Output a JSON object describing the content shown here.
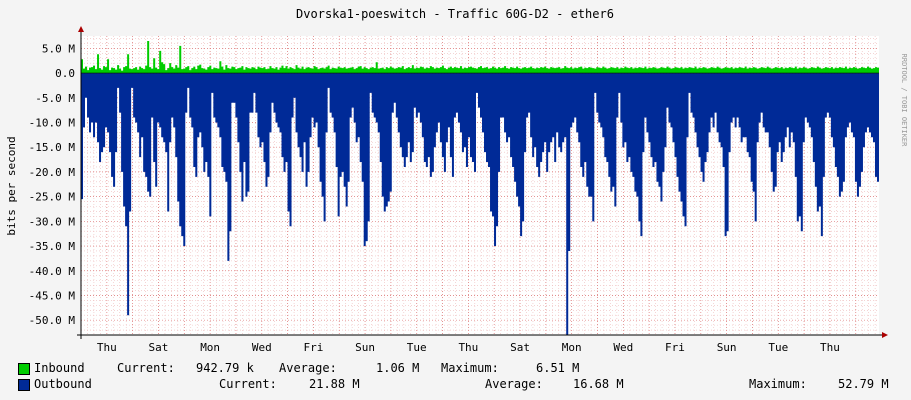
{
  "chart_data": {
    "type": "area",
    "title": "Dvorska1-poeswitch - Traffic 60G-D2 - ether6",
    "ylabel": "bits per second",
    "side_label": "RRDTOOL / TOBI OETIKER",
    "ylim": [
      -53000000,
      7500000
    ],
    "y_ticks": [
      {
        "value": 5000000,
        "label": "5.0 M"
      },
      {
        "value": 0,
        "label": "0.0"
      },
      {
        "value": -5000000,
        "label": "-5.0 M"
      },
      {
        "value": -10000000,
        "label": "-10.0 M"
      },
      {
        "value": -15000000,
        "label": "-15.0 M"
      },
      {
        "value": -20000000,
        "label": "-20.0 M"
      },
      {
        "value": -25000000,
        "label": "-25.0 M"
      },
      {
        "value": -30000000,
        "label": "-30.0 M"
      },
      {
        "value": -35000000,
        "label": "-35.0 M"
      },
      {
        "value": -40000000,
        "label": "-40.0 M"
      },
      {
        "value": -45000000,
        "label": "-45.0 M"
      },
      {
        "value": -50000000,
        "label": "-50.0 M"
      }
    ],
    "x_ticks": [
      "Thu",
      "Sat",
      "Mon",
      "Wed",
      "Fri",
      "Sun",
      "Tue",
      "Thu",
      "Sat",
      "Mon",
      "Wed",
      "Fri",
      "Sun",
      "Tue",
      "Thu"
    ],
    "x_tick_days": [
      1,
      3,
      5,
      7,
      9,
      11,
      13,
      15,
      17,
      19,
      21,
      23,
      25,
      27,
      29
    ],
    "x_range_days": [
      0,
      30.9
    ],
    "grid": true,
    "legend": "bottom",
    "series": [
      {
        "name": "Inbound",
        "color": "#00cc00",
        "direction": "up",
        "values": [
          2.8,
          0.9,
          1.3,
          0.6,
          1.1,
          1.2,
          1.5,
          0.8,
          3.8,
          1.0,
          0.7,
          1.4,
          1.2,
          2.8,
          0.6,
          1.1,
          1.0,
          0.7,
          1.6,
          0.9,
          0.5,
          1.2,
          1.4,
          3.8,
          0.9,
          0.8,
          1.0,
          1.2,
          0.7,
          1.3,
          1.0,
          0.8,
          1.5,
          6.5,
          1.2,
          0.9,
          3.0,
          1.1,
          0.8,
          4.5,
          2.2,
          1.8,
          0.6,
          1.0,
          2.0,
          1.2,
          0.9,
          1.6,
          1.1,
          5.5,
          0.8,
          0.9,
          1.2,
          1.4,
          0.6,
          1.0,
          1.3,
          0.8,
          1.5,
          1.7,
          1.0,
          0.9,
          0.7,
          1.2,
          1.5,
          0.8,
          1.1,
          1.0,
          0.9,
          2.4,
          1.3,
          0.7,
          1.6,
          1.0,
          0.9,
          1.3,
          1.2,
          0.8,
          1.0,
          1.1,
          1.4,
          0.7,
          1.2,
          1.0,
          0.9,
          1.2,
          1.1,
          0.8,
          1.3,
          1.1,
          1.0,
          1.2,
          0.8,
          0.9,
          1.4,
          1.0,
          0.9,
          1.2,
          0.7,
          1.1,
          1.5,
          1.0,
          1.4,
          0.9,
          1.2,
          1.0,
          0.8,
          1.6,
          1.1,
          0.9,
          1.3,
          0.8,
          1.1,
          1.2,
          1.0,
          0.9,
          1.4,
          1.2,
          0.8,
          1.0,
          1.1,
          0.9,
          1.2,
          1.5,
          0.8,
          1.1,
          1.0,
          0.9,
          1.3,
          1.1,
          1.0,
          1.2,
          0.9,
          1.0,
          1.1,
          1.2,
          0.8,
          1.0,
          1.3,
          1.4,
          0.9,
          1.2,
          1.0,
          0.8,
          1.1,
          1.2,
          1.0,
          2.2,
          0.9,
          1.0,
          1.1,
          0.8,
          1.2,
          1.0,
          1.3,
          1.1,
          0.9,
          1.0,
          1.2,
          1.1,
          1.4,
          0.8,
          1.0,
          1.2,
          1.0,
          1.6,
          0.9,
          1.1,
          1.0,
          1.3,
          1.2,
          0.9,
          1.1,
          1.0,
          1.4,
          1.2,
          0.9,
          1.1,
          1.0,
          1.2,
          1.5,
          1.0,
          0.8,
          1.1,
          1.3,
          1.0,
          1.2,
          1.1,
          1.0,
          1.4,
          0.9,
          1.1,
          1.0,
          1.2,
          1.3,
          1.1,
          1.0,
          0.9,
          1.2,
          1.4,
          1.0,
          1.1,
          1.2,
          0.9,
          1.0,
          1.3,
          1.1,
          0.9,
          1.2,
          1.0,
          1.1,
          1.4,
          1.0,
          0.9,
          1.2,
          1.1,
          1.0,
          1.3,
          1.0,
          0.9,
          1.1,
          1.2,
          1.0,
          1.1,
          1.3,
          1.0,
          0.9,
          1.1,
          1.0,
          1.2,
          1.1,
          1.3,
          1.0,
          0.9,
          1.2,
          1.1,
          1.0,
          1.1,
          1.2,
          0.9,
          1.0,
          1.4,
          1.1,
          1.0,
          1.2,
          0.9,
          1.1,
          1.0,
          1.2,
          1.3,
          0.9,
          1.1,
          1.0,
          1.2,
          1.1,
          1.0,
          0.9,
          1.2,
          1.1,
          1.0,
          1.3,
          1.1,
          0.9,
          1.0,
          1.2,
          1.1,
          1.0,
          1.2,
          0.9,
          1.1,
          1.0,
          1.3,
          1.1,
          1.0,
          1.2,
          0.9,
          1.1,
          1.0,
          1.2,
          1.1,
          1.0,
          1.3,
          0.9,
          1.1,
          1.0,
          1.2,
          1.1,
          0.9,
          1.0,
          1.2,
          1.1,
          1.0,
          1.3,
          1.1,
          0.9,
          1.0,
          1.2,
          1.1,
          1.0,
          1.2,
          0.9,
          1.1,
          1.0,
          1.2,
          1.1,
          1.0,
          1.3,
          0.9,
          1.1,
          1.0,
          1.2,
          1.1,
          0.9,
          1.0,
          1.2,
          1.1,
          1.0,
          1.3,
          1.1,
          0.9,
          1.0,
          1.2,
          1.1,
          1.0,
          1.2,
          0.9,
          1.1,
          1.0,
          1.2,
          1.1,
          1.0,
          1.3,
          0.9,
          1.1,
          1.0,
          1.2,
          1.1,
          0.9,
          1.0,
          1.2,
          1.1,
          1.0,
          1.3,
          1.1,
          0.9,
          1.0,
          1.2,
          1.1,
          1.0,
          1.2,
          0.9,
          1.1,
          1.0,
          1.2,
          1.1,
          1.0,
          1.3,
          0.9,
          1.1,
          1.0,
          1.2,
          1.1,
          0.9,
          1.0,
          1.2,
          1.1,
          1.0,
          1.3,
          1.1,
          0.9,
          1.0,
          1.2,
          1.1,
          1.0,
          1.2,
          0.9,
          1.1,
          1.0,
          1.2,
          1.1,
          1.0,
          1.3,
          0.9,
          1.1,
          1.0,
          1.2,
          1.1,
          0.9,
          1.0,
          1.2,
          1.1,
          1.0,
          1.3,
          1.1,
          0.9,
          1.0,
          1.2,
          1.1,
          1.0,
          1.2,
          0.9,
          1.1,
          1.0,
          1.2,
          1.1,
          1.0,
          1.3,
          0.9,
          1.1,
          1.0,
          1.2,
          1.1,
          0.9,
          1.0,
          1.2,
          1.1,
          1.0,
          1.3,
          1.1,
          0.9,
          1.0,
          1.2,
          1.1,
          1.0,
          1.2,
          0.9,
          1.1,
          1.0,
          1.2,
          1.1,
          1.0,
          1.3,
          0.9,
          1.1,
          1.0,
          1.2,
          1.1,
          0.9,
          1.0,
          1.2,
          1.1,
          1.0,
          1.3,
          1.1,
          0.9,
          1.0,
          1.2,
          1.1,
          1.0,
          1.2,
          0.9,
          1.1,
          1.0,
          1.2,
          1.1,
          1.0,
          1.3,
          0.9,
          1.1,
          1.0,
          1.2,
          1.1,
          0.9,
          1.0,
          1.2,
          1.1,
          1.0,
          1.3,
          1.1,
          0.9,
          1.0,
          1.2,
          1.1,
          1.0,
          1.2,
          0.9,
          1.1,
          1.0,
          1.2,
          1.1,
          1.0,
          1.3,
          0.9,
          1.1,
          1.0,
          1.2,
          1.1,
          0.9,
          1.0,
          1.2,
          1.1,
          1.0,
          1.3,
          1.1,
          0.9,
          1.0,
          1.2,
          1.1,
          1.0,
          1.2,
          0.9,
          1.1,
          1.0,
          1.2,
          1.1,
          1.0,
          1.3,
          0.9,
          1.1,
          1.0,
          1.2,
          1.1,
          0.9,
          1.0,
          1.2,
          1.1,
          1.0,
          1.3,
          1.1,
          0.9,
          1.0,
          1.2,
          1.1,
          1.0,
          1.2,
          0.9,
          1.1,
          1.0,
          1.2,
          1.1,
          1.0,
          1.3,
          0.9,
          1.1,
          1.0,
          1.2,
          1.1,
          0.9,
          1.0,
          1.2,
          1.1,
          1.0,
          1.3,
          1.1,
          0.9,
          1.0,
          1.2,
          1.1,
          1.0,
          1.2,
          0.9,
          1.1,
          1.0,
          1.2,
          1.1,
          1.0,
          1.3,
          0.9,
          1.1,
          1.0,
          1.2,
          1.1,
          0.9,
          1.0,
          1.2,
          1.1,
          1.0,
          1.3,
          1.1,
          0.9,
          1.0,
          1.2,
          1.1,
          1.0,
          1.2,
          0.9,
          1.1,
          1.0,
          1.2,
          1.1,
          1.0,
          1.3,
          0.9,
          1.1,
          1.0,
          1.2,
          1.1,
          0.9,
          1.0,
          1.2,
          1.1,
          1.0,
          1.3,
          1.1,
          0.9,
          1.0,
          1.2,
          1.1,
          1.0,
          1.2,
          0.9,
          1.1,
          1.0,
          1.2,
          1.1,
          1.0,
          1.3,
          0.9,
          1.1,
          1.0,
          1.2,
          1.1,
          0.9,
          1.0,
          1.2,
          1.1,
          1.0,
          1.3,
          1.1,
          0.9,
          1.0,
          1.2,
          1.1,
          1.0,
          1.2,
          0.9,
          1.1,
          1.0,
          1.2,
          1.1,
          1.0,
          1.3,
          0.9,
          1.1,
          1.0,
          1.2,
          1.1,
          0.9,
          1.0,
          1.2,
          1.1,
          1.0,
          1.3,
          1.1,
          0.9,
          1.0,
          1.2,
          1.1,
          1.0,
          1.2,
          0.9,
          1.1,
          1.0,
          1.2,
          1.1,
          1.0,
          1.3,
          0.9,
          1.1,
          1.0,
          1.2,
          1.1,
          0.9,
          1.0,
          1.2,
          1.1,
          1.0,
          1.3,
          1.1,
          0.9,
          1.0,
          1.2,
          1.1,
          1.0,
          1.2,
          0.9,
          1.1,
          1.0,
          1.2,
          1.1,
          1.0,
          1.3,
          0.9,
          1.1,
          1.0,
          1.2,
          1.1,
          0.9,
          1.0,
          1.2,
          1.1,
          1.0,
          1.3,
          1.1,
          0.9,
          1.0,
          1.2,
          1.1,
          1.0,
          1.2,
          0.9,
          1.1,
          1.0,
          1.2,
          1.1,
          1.0,
          1.3,
          0.9,
          1.1,
          1.0,
          1.2,
          1.1,
          0.9,
          1.0,
          1.2,
          1.1,
          1.0,
          1.3,
          1.1,
          0.9,
          1.0,
          1.2,
          1.1,
          1.0,
          1.2,
          0.9,
          1.1,
          1.0,
          1.2,
          1.1,
          1.0,
          1.3,
          0.9,
          1.1,
          1.0,
          1.2,
          1.1,
          0.9,
          1.0,
          1.2,
          1.1,
          1.0,
          1.3,
          1.1,
          0.9,
          1.0,
          1.2,
          1.1,
          1.0,
          1.2,
          0.9,
          1.1,
          1.0,
          1.2,
          1.1,
          1.0,
          1.3,
          0.9,
          1.1,
          1.0,
          1.2,
          1.1,
          0.9,
          1.0,
          1.2,
          1.1,
          1.0,
          1.3,
          1.1,
          0.9,
          1.0,
          1.2,
          1.1,
          1.0,
          1.2,
          0.9,
          1.1,
          1.0,
          1.2,
          1.1,
          1.0,
          1.3,
          0.9,
          1.1,
          1.0,
          1.2,
          1.1,
          0.9,
          1.0,
          1.2,
          1.1,
          1.0,
          1.3
        ],
        "unit": "M"
      },
      {
        "name": "Outbound",
        "color": "#002a97",
        "direction": "down",
        "unit": "M",
        "values": [
          25.5,
          11,
          5,
          9,
          12,
          10,
          13,
          10,
          14,
          18,
          16,
          15,
          11,
          12,
          16,
          21,
          23,
          16,
          3,
          8,
          20,
          27,
          31,
          49,
          28,
          3,
          9,
          10,
          12,
          17,
          13,
          20,
          21,
          24,
          25,
          9,
          18,
          23,
          10,
          11,
          13,
          14,
          16,
          28,
          14,
          9,
          11,
          17,
          26,
          31,
          33,
          35,
          8,
          3,
          9,
          11,
          19,
          21,
          13,
          12,
          15,
          20,
          18,
          21,
          29,
          4,
          9,
          10,
          11,
          13,
          19,
          20,
          22,
          38,
          32,
          6,
          6,
          9,
          14,
          20,
          26,
          18,
          25,
          24,
          8,
          8,
          4,
          8,
          13,
          15,
          14,
          18,
          23,
          21,
          12,
          6,
          8,
          10,
          11,
          12,
          17,
          20,
          18,
          28,
          31,
          9,
          5,
          12,
          15,
          17,
          20,
          14,
          23,
          20,
          13,
          9,
          11,
          10,
          15,
          22,
          25,
          30,
          12,
          3,
          8,
          9,
          12,
          19,
          29,
          21,
          20,
          23,
          27,
          22,
          9,
          7,
          10,
          14,
          13,
          18,
          22,
          35,
          34,
          30,
          4,
          8,
          9,
          10,
          12,
          18,
          25,
          28,
          27,
          26,
          24,
          8,
          6,
          9,
          12,
          15,
          17,
          19,
          17,
          14,
          18,
          16,
          7,
          9,
          8,
          10,
          13,
          18,
          19,
          17,
          21,
          20,
          15,
          12,
          10,
          14,
          17,
          20,
          14,
          11,
          17,
          21,
          9,
          8,
          10,
          12,
          16,
          15,
          19,
          13,
          17,
          18,
          20,
          4,
          7,
          9,
          12,
          16,
          18,
          19,
          28,
          29,
          35,
          31,
          20,
          9,
          9,
          12,
          14,
          13,
          17,
          19,
          22,
          25,
          27,
          33,
          30,
          16,
          9,
          8,
          13,
          17,
          15,
          19,
          21,
          18,
          16,
          14,
          20,
          16,
          14,
          13,
          18,
          12,
          15,
          16,
          14,
          13,
          53,
          36,
          11,
          10,
          9,
          12,
          14,
          19,
          21,
          18,
          23,
          25,
          25,
          30,
          4,
          8,
          10,
          11,
          13,
          17,
          18,
          21,
          24,
          23,
          27,
          9,
          4,
          10,
          15,
          14,
          18,
          17,
          20,
          21,
          24,
          25,
          30,
          33,
          16,
          9,
          12,
          14,
          17,
          19,
          18,
          22,
          23,
          26,
          20,
          15,
          7,
          10,
          11,
          14,
          17,
          21,
          24,
          26,
          29,
          31,
          13,
          4,
          8,
          9,
          12,
          15,
          17,
          20,
          22,
          18,
          16,
          12,
          9,
          11,
          8,
          12,
          14,
          15,
          19,
          33,
          32,
          16,
          10,
          9,
          11,
          9,
          11,
          14,
          13,
          13,
          16,
          17,
          22,
          24,
          30,
          14,
          10,
          8,
          11,
          12,
          12,
          15,
          20,
          24,
          23,
          16,
          14,
          18,
          16,
          13,
          11,
          15,
          12,
          14,
          21,
          30,
          29,
          32,
          14,
          9,
          10,
          11,
          13,
          18,
          23,
          28,
          27,
          33,
          21,
          9,
          8,
          9,
          13,
          15,
          19,
          21,
          25,
          24,
          22,
          13,
          11,
          10,
          12,
          13,
          22,
          25,
          23,
          20,
          15,
          12,
          11,
          12,
          13,
          14,
          21,
          22
        ]
      }
    ],
    "legend_entries": [
      {
        "name": "Inbound",
        "color": "#00cc00",
        "current_label": "Current:",
        "current": "942.79 k",
        "average_label": "Average:",
        "average": "1.06 M",
        "maximum_label": "Maximum:",
        "maximum": "6.51 M"
      },
      {
        "name": "Outbound",
        "color": "#002a97",
        "current_label": "Current:",
        "current": "21.88 M",
        "average_label": "Average:",
        "average": "16.68 M",
        "maximum_label": "Maximum:",
        "maximum": "52.79 M"
      }
    ]
  }
}
